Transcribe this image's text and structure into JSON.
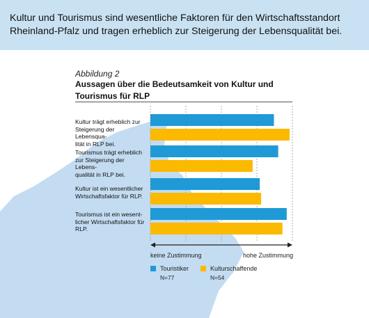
{
  "banner": {
    "text": "Kultur und Tourismus sind wesentliche Faktoren für den Wirtschaftsstandort Rheinland-Pfalz und  tragen erheblich zur Steigerung der Lebensqualität bei."
  },
  "figure": {
    "label": "Abbildung 2",
    "title": "Aussagen über die Bedeutsamkeit von Kultur und Tourismus für RLP"
  },
  "colors": {
    "banner": "#c9e2f3",
    "map": "#c3dcf1",
    "touristiker": "#1f9ad6",
    "kulturschaffende": "#fbb900"
  },
  "chart_data": {
    "type": "bar",
    "orientation": "horizontal",
    "categories": [
      "Kultur trägt erheblich zur Steigerung der Lebensqualität in RLP bei.",
      "Tourismus trägt erheblich zur Steigerung der Lebensqualität in RLP bei.",
      "Kultur ist ein wesentlicher Wirtschaftsfaktor für RLP.",
      "Tourismus ist ein wesentlicher Wirtschaftsfaktor für RLP."
    ],
    "series": [
      {
        "name": "Touristiker",
        "n": "N=77",
        "values": [
          0.87,
          0.9,
          0.77,
          0.96
        ]
      },
      {
        "name": "Kulturschaffende",
        "n": "N=54",
        "values": [
          0.98,
          0.72,
          0.78,
          0.93
        ]
      }
    ],
    "xlim": [
      0,
      1
    ],
    "axis_low_label": "keine Zustimmung",
    "axis_high_label": "hohe Zustimmung",
    "grid": true,
    "legend_position": "bottom"
  },
  "category_lines": [
    [
      "Kultur trägt erheblich zur",
      "Steigerung der Lebensqua-",
      "lität in RLP bei."
    ],
    [
      "Tourismus trägt erheblich",
      "zur Steigerung der Lebens-",
      "qualität in RLP bei."
    ],
    [
      "Kultur ist ein wesentlicher",
      "Wirtschaftsfaktor für RLP."
    ],
    [
      "Tourismus ist ein wesent-",
      "licher Wirtschaftsfaktor für",
      "RLP."
    ]
  ]
}
